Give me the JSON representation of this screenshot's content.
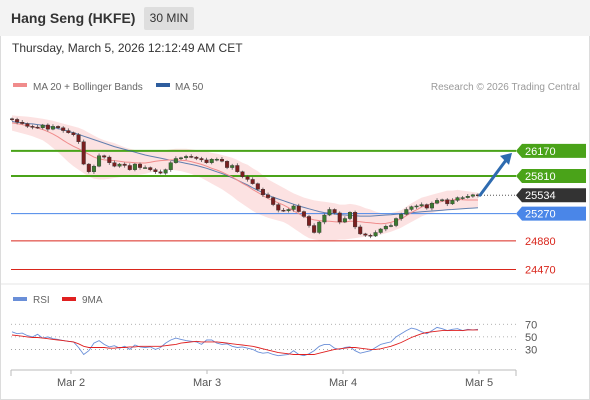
{
  "header": {
    "instrument": "Hang Seng (HKFE)",
    "interval": "30 MIN",
    "datetime": "Thursday, March 5, 2026 12:12:49 AM CET"
  },
  "legend": {
    "ma20_label": "MA 20 + Bollinger Bands",
    "ma50_label": "MA 50",
    "credit": "Research © 2026 Trading Central",
    "ma20_color": "#f08c8c",
    "ma50_color": "#2e5d9e"
  },
  "rsi_legend": {
    "rsi_label": "RSI",
    "ma_label": "9MA",
    "rsi_color": "#6a8fd8",
    "ma_color": "#e02020"
  },
  "chart_data": [
    {
      "type": "line",
      "name": "price",
      "levels": [
        {
          "value": 26170,
          "label": "26170",
          "kind": "resistance",
          "color": "#4aa319"
        },
        {
          "value": 25810,
          "label": "25810",
          "kind": "resistance",
          "color": "#4aa319"
        },
        {
          "value": 25534,
          "label": "25534",
          "kind": "last",
          "color": "#333333"
        },
        {
          "value": 25270,
          "label": "25270",
          "kind": "pivot",
          "color": "#4a86e8"
        },
        {
          "value": 24880,
          "label": "24880",
          "kind": "support",
          "color": "#d9261c"
        },
        {
          "value": 24470,
          "label": "24470",
          "kind": "support",
          "color": "#d9261c"
        }
      ],
      "x_ticks": [
        "Mar 2",
        "Mar 3",
        "Mar 4",
        "Mar 5"
      ],
      "ylim": [
        24420,
        26640
      ],
      "close": [
        26620,
        26580,
        26560,
        26520,
        26510,
        26500,
        26540,
        26480,
        26520,
        26500,
        26460,
        26430,
        26400,
        26300,
        25980,
        25870,
        25950,
        26100,
        26080,
        26000,
        25950,
        25980,
        25960,
        25900,
        25980,
        25930,
        25930,
        25900,
        25870,
        25850,
        25900,
        26000,
        26060,
        26070,
        26090,
        26080,
        26060,
        26040,
        26000,
        26050,
        26050,
        26020,
        25930,
        25960,
        25870,
        25800,
        25760,
        25700,
        25620,
        25540,
        25500,
        25400,
        25320,
        25310,
        25330,
        25380,
        25300,
        25230,
        25100,
        25000,
        25150,
        25250,
        25330,
        25280,
        25150,
        25200,
        25290,
        25080,
        24980,
        24960,
        24950,
        25000,
        25050,
        25090,
        25100,
        25200,
        25260,
        25330,
        25370,
        25380,
        25400,
        25350,
        25420,
        25460,
        25470,
        25410,
        25460,
        25500,
        25500,
        25520,
        25540,
        25534
      ],
      "bb_upper": [
        26680,
        26670,
        26665,
        26660,
        26650,
        26640,
        26630,
        26615,
        26600,
        26580,
        26560,
        26540,
        26520,
        26500,
        26470,
        26430,
        26390,
        26350,
        26320,
        26300,
        26280,
        26250,
        26220,
        26200,
        26180,
        26170,
        26160,
        26160,
        26160,
        26170,
        26180,
        26190,
        26200,
        26200,
        26200,
        26190,
        26180,
        26170,
        26160,
        26140,
        26130,
        26110,
        26090,
        26070,
        26040,
        26000,
        25970,
        25920,
        25880,
        25820,
        25760,
        25720,
        25680,
        25640,
        25600,
        25560,
        25530,
        25500,
        25480,
        25460,
        25450,
        25440,
        25430,
        25420,
        25400,
        25400,
        25410,
        25400,
        25380,
        25350,
        25330,
        25300,
        25280,
        25270,
        25280,
        25300,
        25320,
        25370,
        25420,
        25460,
        25500,
        25520,
        25540,
        25560,
        25580,
        25600,
        25600,
        25610,
        25600,
        25590,
        25580,
        25570
      ],
      "bb_lower": [
        26460,
        26440,
        26420,
        26400,
        26380,
        26350,
        26320,
        26270,
        26210,
        26150,
        26080,
        26010,
        25950,
        25900,
        25850,
        25800,
        25770,
        25760,
        25760,
        25770,
        25780,
        25790,
        25800,
        25810,
        25820,
        25830,
        25840,
        25860,
        25880,
        25890,
        25900,
        25900,
        25890,
        25880,
        25860,
        25840,
        25810,
        25780,
        25740,
        25700,
        25660,
        25620,
        25570,
        25520,
        25460,
        25410,
        25360,
        25310,
        25270,
        25240,
        25210,
        25190,
        25170,
        25150,
        25110,
        25060,
        25010,
        24960,
        24920,
        24900,
        24890,
        24890,
        24890,
        24890,
        24900,
        24900,
        24910,
        24920,
        24930,
        24940,
        24950,
        24960,
        24970,
        24990,
        25010,
        25040,
        25070,
        25110,
        25150,
        25190,
        25230,
        25260,
        25280,
        25300,
        25310,
        25320,
        25330,
        25340,
        25340,
        25340,
        25350,
        25360
      ],
      "ma20": [
        26570,
        26560,
        26545,
        26530,
        26515,
        26495,
        26475,
        26445,
        26410,
        26370,
        26320,
        26275,
        26235,
        26200,
        26160,
        26120,
        26080,
        26055,
        26040,
        26035,
        26030,
        26020,
        26010,
        26005,
        26000,
        25995,
        25995,
        26005,
        26020,
        26030,
        26035,
        26040,
        26040,
        26035,
        26030,
        26015,
        25995,
        25975,
        25950,
        25920,
        25895,
        25865,
        25830,
        25795,
        25750,
        25705,
        25665,
        25615,
        25575,
        25530,
        25485,
        25455,
        25425,
        25395,
        25355,
        25310,
        25270,
        25230,
        25200,
        25180,
        25170,
        25165,
        25160,
        25155,
        25150,
        25150,
        25160,
        25160,
        25155,
        25145,
        25140,
        25130,
        25125,
        25130,
        25145,
        25170,
        25195,
        25240,
        25285,
        25325,
        25365,
        25390,
        25410,
        25430,
        25445,
        25460,
        25465,
        25475,
        25470,
        25465,
        25465,
        25465
      ],
      "ma50": [
        26590,
        26580,
        26570,
        26560,
        26555,
        26545,
        26535,
        26520,
        26505,
        26490,
        26470,
        26450,
        26430,
        26405,
        26380,
        26355,
        26330,
        26305,
        26280,
        26255,
        26230,
        26210,
        26190,
        26170,
        26150,
        26130,
        26110,
        26095,
        26080,
        26065,
        26050,
        26035,
        26020,
        26005,
        25990,
        25975,
        25960,
        25940,
        25920,
        25895,
        25870,
        25845,
        25815,
        25785,
        25750,
        25715,
        25680,
        25640,
        25605,
        25570,
        25535,
        25505,
        25480,
        25455,
        25430,
        25405,
        25380,
        25360,
        25340,
        25320,
        25300,
        25285,
        25275,
        25265,
        25255,
        25250,
        25245,
        25240,
        25235,
        25235,
        25235,
        25240,
        25245,
        25250,
        25255,
        25262,
        25268,
        25275,
        25282,
        25290,
        25296,
        25302,
        25308,
        25314,
        25320,
        25326,
        25330,
        25335,
        25340,
        25345,
        25350,
        25355
      ]
    },
    {
      "type": "line",
      "name": "rsi",
      "ylim": [
        10,
        80
      ],
      "y_ticks": [
        "70",
        "50",
        "30"
      ],
      "rsi": [
        58,
        55,
        56,
        52,
        50,
        54,
        48,
        50,
        47,
        46,
        44,
        43,
        42,
        33,
        22,
        28,
        40,
        44,
        38,
        34,
        36,
        32,
        35,
        30,
        37,
        34,
        33,
        34,
        30,
        33,
        40,
        45,
        48,
        46,
        44,
        43,
        42,
        38,
        45,
        45,
        40,
        38,
        39,
        35,
        33,
        34,
        32,
        30,
        26,
        24,
        25,
        22,
        20,
        21,
        22,
        28,
        22,
        20,
        23,
        28,
        35,
        38,
        38,
        32,
        30,
        33,
        34,
        28,
        24,
        26,
        28,
        33,
        38,
        40,
        42,
        50,
        55,
        60,
        64,
        62,
        58,
        55,
        60,
        65,
        63,
        60,
        62,
        63,
        60,
        62,
        61,
        62
      ],
      "ma": [
        53,
        52,
        51,
        50,
        49,
        49,
        48,
        47,
        46,
        45,
        44,
        43,
        42,
        39,
        35,
        33,
        33,
        33,
        33,
        32,
        32,
        33,
        33,
        34,
        34,
        35,
        35,
        35,
        35,
        35,
        36,
        37,
        38,
        40,
        41,
        42,
        43,
        42,
        42,
        42,
        42,
        41,
        40,
        39,
        38,
        37,
        36,
        35,
        33,
        31,
        29,
        27,
        25,
        24,
        23,
        22,
        22,
        22,
        22,
        22,
        24,
        26,
        28,
        30,
        31,
        32,
        33,
        33,
        32,
        31,
        30,
        30,
        31,
        33,
        35,
        38,
        41,
        45,
        49,
        52,
        55,
        57,
        58,
        59,
        60,
        60,
        60,
        60,
        60,
        61,
        61,
        61
      ]
    }
  ]
}
